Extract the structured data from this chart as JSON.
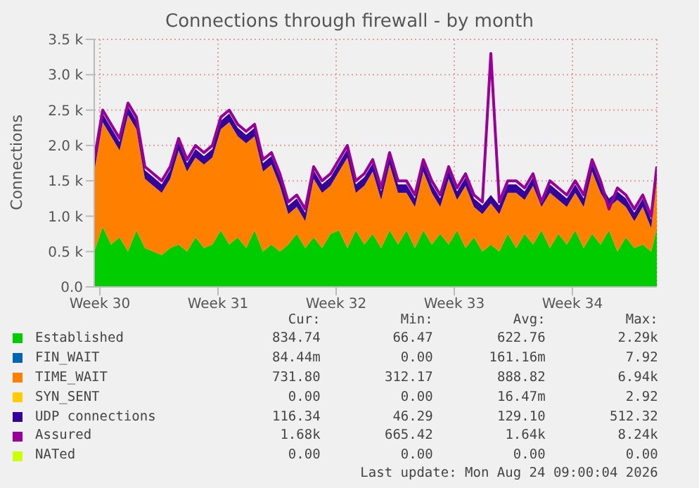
{
  "chart_data": {
    "type": "area",
    "title": "Connections through firewall - by month",
    "ylabel": "Connections",
    "stacked": true,
    "grid": true,
    "legend": "bottom",
    "x": [
      "2026-07-22T01:00",
      "2026-07-22T13:00",
      "2026-07-23T01:00",
      "2026-07-23T13:00",
      "2026-07-24T01:00",
      "2026-07-24T13:00",
      "2026-07-25T01:00",
      "2026-07-25T13:00",
      "2026-07-26T01:00",
      "2026-07-26T13:00",
      "2026-07-27T01:00",
      "2026-07-27T13:00",
      "2026-07-28T01:00",
      "2026-07-28T13:00",
      "2026-07-29T01:00",
      "2026-07-29T13:00",
      "2026-07-30T01:00",
      "2026-07-30T13:00",
      "2026-07-31T01:00",
      "2026-07-31T13:00",
      "2026-08-01T01:00",
      "2026-08-01T13:00",
      "2026-08-02T01:00",
      "2026-08-02T13:00",
      "2026-08-03T01:00",
      "2026-08-03T13:00",
      "2026-08-04T01:00",
      "2026-08-04T13:00",
      "2026-08-05T01:00",
      "2026-08-05T13:00",
      "2026-08-06T01:00",
      "2026-08-06T13:00",
      "2026-08-07T01:00",
      "2026-08-07T13:00",
      "2026-08-08T01:00",
      "2026-08-08T13:00",
      "2026-08-09T01:00",
      "2026-08-09T13:00",
      "2026-08-10T01:00",
      "2026-08-10T13:00",
      "2026-08-11T01:00",
      "2026-08-11T13:00",
      "2026-08-12T01:00",
      "2026-08-12T13:00",
      "2026-08-13T01:00",
      "2026-08-13T13:00",
      "2026-08-14T01:00",
      "2026-08-14T13:00",
      "2026-08-15T01:00",
      "2026-08-15T13:00",
      "2026-08-16T01:00",
      "2026-08-16T13:00",
      "2026-08-17T01:00",
      "2026-08-17T13:00",
      "2026-08-18T01:00",
      "2026-08-18T13:00",
      "2026-08-19T01:00",
      "2026-08-19T13:00",
      "2026-08-20T01:00",
      "2026-08-20T13:00",
      "2026-08-21T01:00",
      "2026-08-21T13:00",
      "2026-08-22T01:00",
      "2026-08-22T13:00",
      "2026-08-23T01:00",
      "2026-08-23T13:00",
      "2026-08-24T01:00",
      "2026-08-24T09:00"
    ],
    "xlim": [
      "2026-07-22T01:00",
      "2026-08-24T09:00"
    ],
    "xticks": [
      {
        "value": "2026-07-22T09:00",
        "label": "Week 30"
      },
      {
        "value": "2026-07-29T09:00",
        "label": "Week 31"
      },
      {
        "value": "2026-08-05T09:00",
        "label": "Week 32"
      },
      {
        "value": "2026-08-12T09:00",
        "label": "Week 33"
      },
      {
        "value": "2026-08-19T09:00",
        "label": "Week 34"
      }
    ],
    "ylim": [
      0,
      3500
    ],
    "yticks": [
      {
        "value": 0,
        "label": "0.0"
      },
      {
        "value": 500,
        "label": "0.5 k"
      },
      {
        "value": 1000,
        "label": "1.0 k"
      },
      {
        "value": 1500,
        "label": "1.5 k"
      },
      {
        "value": 2000,
        "label": "2.0 k"
      },
      {
        "value": 2500,
        "label": "2.5 k"
      },
      {
        "value": 3000,
        "label": "3.0 k"
      },
      {
        "value": 3500,
        "label": "3.5 k"
      }
    ],
    "series": [
      {
        "name": "Established",
        "color": "#00cc00",
        "values": [
          500,
          850,
          600,
          700,
          500,
          800,
          550,
          500,
          450,
          550,
          600,
          500,
          700,
          550,
          600,
          800,
          600,
          700,
          550,
          800,
          500,
          600,
          500,
          600,
          750,
          550,
          700,
          550,
          750,
          800,
          550,
          800,
          600,
          750,
          550,
          800,
          600,
          800,
          550,
          800,
          600,
          750,
          600,
          800,
          550,
          700,
          500,
          600,
          500,
          750,
          550,
          750,
          600,
          800,
          550,
          750,
          600,
          800,
          550,
          750,
          600,
          800,
          500,
          700,
          550,
          600,
          500,
          830
        ]
      },
      {
        "name": "FIN_WAIT",
        "color": "#0066b3",
        "values": [
          null,
          null,
          null,
          null,
          null,
          null,
          null,
          null,
          null,
          null,
          null,
          null,
          null,
          null,
          null,
          null,
          null,
          null,
          null,
          null,
          null,
          null,
          null,
          null,
          null,
          null,
          null,
          null,
          null,
          null,
          null,
          null,
          null,
          null,
          null,
          null,
          null,
          null,
          null,
          null,
          null,
          null,
          null,
          null,
          null,
          null,
          null,
          null,
          null,
          null,
          null,
          null,
          null,
          null,
          null,
          null,
          null,
          null,
          null,
          null,
          null,
          null,
          null,
          null,
          null,
          null,
          null,
          null
        ]
      },
      {
        "name": "TIME_WAIT",
        "color": "#ff8000",
        "values": [
          1130,
          1480,
          1530,
          1230,
          1930,
          1430,
          980,
          930,
          880,
          980,
          1330,
          1130,
          1130,
          1180,
          1230,
          1430,
          1730,
          1430,
          1480,
          1330,
          1130,
          1130,
          930,
          430,
          380,
          380,
          830,
          780,
          680,
          830,
          1280,
          530,
          830,
          880,
          680,
          930,
          730,
          530,
          580,
          830,
          730,
          380,
          930,
          430,
          880,
          430,
          530,
          580,
          530,
          580,
          780,
          480,
          830,
          330,
          780,
          480,
          530,
          530,
          580,
          880,
          730,
          330,
          730,
          430,
          380,
          530,
          330,
          730
        ]
      },
      {
        "name": "SYN_SENT",
        "color": "#ffcc00",
        "values": [
          null,
          null,
          null,
          null,
          null,
          null,
          null,
          null,
          null,
          null,
          null,
          null,
          null,
          null,
          null,
          null,
          null,
          null,
          null,
          null,
          null,
          null,
          null,
          null,
          null,
          null,
          null,
          null,
          null,
          null,
          null,
          null,
          null,
          null,
          null,
          null,
          null,
          null,
          null,
          null,
          null,
          null,
          null,
          null,
          null,
          null,
          null,
          null,
          null,
          null,
          null,
          null,
          null,
          null,
          null,
          null,
          null,
          null,
          null,
          null,
          null,
          null,
          null,
          null,
          null,
          null,
          null,
          null
        ]
      },
      {
        "name": "UDP connections",
        "color": "#330099",
        "values": [
          120,
          120,
          120,
          120,
          120,
          120,
          120,
          120,
          120,
          120,
          120,
          120,
          120,
          120,
          120,
          120,
          120,
          120,
          120,
          120,
          120,
          120,
          120,
          120,
          120,
          120,
          120,
          120,
          120,
          120,
          120,
          120,
          120,
          120,
          120,
          120,
          120,
          120,
          120,
          120,
          120,
          120,
          120,
          120,
          120,
          120,
          120,
          120,
          120,
          120,
          120,
          120,
          120,
          120,
          120,
          120,
          120,
          120,
          120,
          120,
          120,
          120,
          120,
          120,
          120,
          120,
          120,
          120
        ]
      },
      {
        "name": "Assured",
        "color": "#990099",
        "type": "line",
        "values": [
          1800,
          2500,
          2300,
          2100,
          2600,
          2400,
          1700,
          1600,
          1500,
          1700,
          2100,
          1800,
          2000,
          1900,
          2000,
          2400,
          2500,
          2300,
          2200,
          2300,
          1800,
          1900,
          1600,
          1200,
          1300,
          1100,
          1700,
          1500,
          1600,
          1800,
          2000,
          1500,
          1600,
          1800,
          1400,
          1900,
          1500,
          1500,
          1300,
          1800,
          1500,
          1300,
          1700,
          1400,
          1600,
          1300,
          1200,
          3300,
          1200,
          1500,
          1500,
          1400,
          1600,
          1200,
          1500,
          1400,
          1300,
          1500,
          1300,
          1800,
          1500,
          1100,
          1400,
          1300,
          1100,
          1300,
          1000,
          1700
        ]
      },
      {
        "name": "NATed",
        "color": "#ccff00",
        "values": [
          null,
          null,
          null,
          null,
          null,
          null,
          null,
          null,
          null,
          null,
          null,
          null,
          null,
          null,
          null,
          null,
          null,
          null,
          null,
          null,
          null,
          null,
          null,
          null,
          null,
          null,
          null,
          null,
          null,
          null,
          null,
          null,
          null,
          null,
          null,
          null,
          null,
          null,
          null,
          null,
          null,
          null,
          null,
          null,
          null,
          null,
          null,
          null,
          null,
          null,
          null,
          null,
          null,
          null,
          null,
          null,
          null,
          null,
          null,
          null,
          null,
          null,
          null,
          null,
          null,
          null,
          null,
          null
        ]
      }
    ],
    "annotations": [
      "Cur:",
      "Min:",
      "Avg:",
      "Max:",
      "834.74",
      "66.47",
      "622.76",
      "2.29k",
      "84.44m",
      "0.00",
      "161.16m",
      "7.92",
      "731.80",
      "312.17",
      "888.82",
      "6.94k",
      "0.00",
      "0.00",
      "16.47m",
      "2.92",
      "116.34",
      "46.29",
      "129.10",
      "512.32",
      "1.68k",
      "665.42",
      "1.64k",
      "8.24k",
      "0.00",
      "0.00",
      "0.00",
      "0.00",
      "Last update: Mon Aug 24 09:00:04 2026"
    ]
  }
}
